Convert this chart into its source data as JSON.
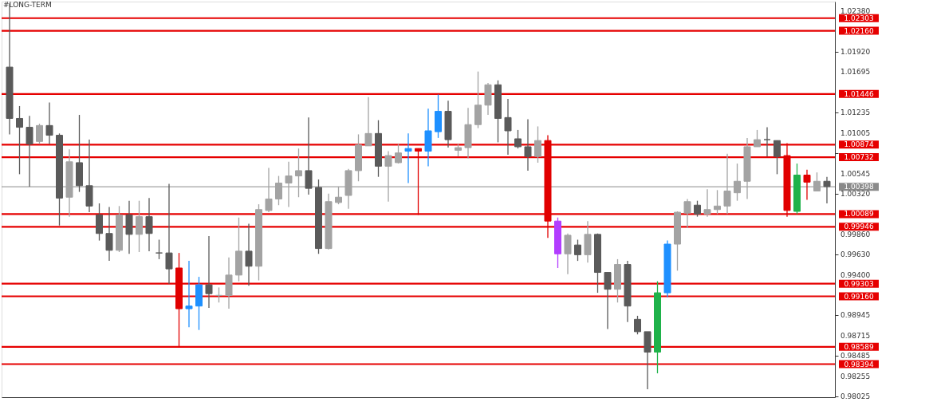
{
  "chart_data": {
    "type": "candlestick",
    "annotations": [
      "#LONG-TERM"
    ],
    "categories": [
      null,
      null,
      null,
      null,
      null,
      null,
      null,
      null,
      null,
      null,
      null,
      null,
      null,
      null,
      null,
      null,
      null,
      null,
      null,
      null,
      null,
      null,
      null,
      null,
      null,
      null,
      null,
      null,
      null,
      null,
      null,
      null,
      null,
      null,
      null,
      null,
      null,
      null,
      null,
      null,
      null,
      null,
      null,
      null,
      null,
      null,
      null,
      null,
      null,
      null,
      null,
      null,
      null,
      null,
      null,
      null,
      null,
      null,
      null,
      null,
      null,
      null,
      null,
      null,
      null,
      null,
      null,
      null,
      null,
      null,
      null,
      null,
      null,
      null,
      null,
      null,
      null,
      null,
      null,
      null,
      null,
      null,
      null
    ],
    "ohlc": [
      [
        1.0175,
        1.0247,
        1.0099,
        1.0117
      ],
      [
        1.0117,
        1.0131,
        1.0054,
        1.0107
      ],
      [
        1.0107,
        1.012,
        1.004,
        1.0088
      ],
      [
        1.0091,
        1.0111,
        1.0088,
        1.0109
      ],
      [
        1.0109,
        1.0135,
        1.0088,
        1.0098
      ],
      [
        1.0098,
        1.01,
        0.9996,
        1.0027
      ],
      [
        1.0028,
        1.0082,
        1.0006,
        1.0068
      ],
      [
        1.0067,
        1.0121,
        1.0034,
        1.0041
      ],
      [
        1.0041,
        1.0093,
        1.0011,
        1.0018
      ],
      [
        1.0008,
        1.0021,
        0.9979,
        0.9987
      ],
      [
        0.9987,
        1.0017,
        0.9956,
        0.9968
      ],
      [
        0.9968,
        1.0018,
        0.9966,
        1.0008
      ],
      [
        1.0008,
        1.0024,
        0.9964,
        0.9986
      ],
      [
        0.9986,
        1.0024,
        0.9966,
        1.0006
      ],
      [
        1.0006,
        1.0027,
        0.9967,
        0.9987
      ],
      [
        0.9965,
        0.998,
        0.9958,
        0.9965
      ],
      [
        0.9965,
        1.0043,
        0.993,
        0.9947
      ],
      [
        0.9948,
        0.9965,
        0.9859,
        0.9902
      ],
      [
        0.9902,
        0.9956,
        0.9881,
        0.9905
      ],
      [
        0.9905,
        0.9938,
        0.9878,
        0.9929
      ],
      [
        0.9929,
        0.9984,
        0.9903,
        0.9919
      ],
      [
        0.9917,
        0.9926,
        0.9909,
        0.9917
      ],
      [
        0.9917,
        0.996,
        0.9902,
        0.994
      ],
      [
        0.994,
        1.0005,
        0.9933,
        0.9967
      ],
      [
        0.9967,
        0.9998,
        0.9928,
        0.995
      ],
      [
        0.995,
        1.002,
        0.9934,
        1.0014
      ],
      [
        1.0013,
        1.0061,
        1.0011,
        1.0026
      ],
      [
        1.0026,
        1.0052,
        1.0019,
        1.0044
      ],
      [
        1.0044,
        1.0068,
        1.0017,
        1.0052
      ],
      [
        1.0052,
        1.0083,
        1.0028,
        1.0058
      ],
      [
        1.0058,
        1.0118,
        1.0031,
        1.0038
      ],
      [
        1.0039,
        1.0048,
        0.9964,
        0.997
      ],
      [
        0.997,
        1.0032,
        0.9969,
        1.0023
      ],
      [
        1.0022,
        1.004,
        1.002,
        1.0028
      ],
      [
        1.003,
        1.006,
        1.0015,
        1.0058
      ],
      [
        1.0058,
        1.0099,
        1.0046,
        1.0087
      ],
      [
        1.0086,
        1.0141,
        1.0086,
        1.01
      ],
      [
        1.01,
        1.0115,
        1.0051,
        1.0063
      ],
      [
        1.0063,
        1.008,
        1.0023,
        1.0075
      ],
      [
        1.0067,
        1.0088,
        1.0066,
        1.0078
      ],
      [
        1.008,
        1.01,
        1.0044,
        1.0083
      ],
      [
        1.0083,
        1.0083,
        1.0008,
        1.008
      ],
      [
        1.008,
        1.0128,
        1.0063,
        1.0103
      ],
      [
        1.0102,
        1.0144,
        1.0095,
        1.0125
      ],
      [
        1.0125,
        1.0137,
        1.0084,
        1.0093
      ],
      [
        1.0081,
        1.0088,
        1.0074,
        1.0084
      ],
      [
        1.0084,
        1.0129,
        1.0072,
        1.011
      ],
      [
        1.011,
        1.017,
        1.0106,
        1.0132
      ],
      [
        1.0132,
        1.0157,
        1.0121,
        1.0155
      ],
      [
        1.0155,
        1.016,
        1.009,
        1.0117
      ],
      [
        1.0118,
        1.0139,
        1.0076,
        1.0103
      ],
      [
        1.0094,
        1.0104,
        1.0083,
        1.0085
      ],
      [
        1.0085,
        1.0116,
        1.0058,
        1.0074
      ],
      [
        1.0074,
        1.0108,
        1.0067,
        1.0092
      ],
      [
        1.0092,
        1.0098,
        0.9982,
        1.0001
      ],
      [
        1.0001,
        1.0005,
        0.9948,
        0.9964
      ],
      [
        0.9964,
        0.9987,
        0.9941,
        0.9985
      ],
      [
        0.9974,
        0.998,
        0.9956,
        0.9963
      ],
      [
        0.9963,
        1.0001,
        0.9954,
        0.9986
      ],
      [
        0.9986,
        0.9987,
        0.992,
        0.9943
      ],
      [
        0.9943,
        0.9943,
        0.9879,
        0.9924
      ],
      [
        0.9924,
        0.9958,
        0.9909,
        0.9952
      ],
      [
        0.9952,
        0.9956,
        0.9887,
        0.9905
      ],
      [
        0.989,
        0.9894,
        0.9873,
        0.9876
      ],
      [
        0.9876,
        0.9876,
        0.9811,
        0.9853
      ],
      [
        0.9853,
        0.9933,
        0.9829,
        0.992
      ],
      [
        0.992,
        0.9979,
        0.9915,
        0.9975
      ],
      [
        0.9975,
        1.0012,
        0.9945,
        1.0011
      ],
      [
        1.001,
        1.0026,
        0.9993,
        1.0023
      ],
      [
        1.0019,
        1.0024,
        1.0006,
        1.0009
      ],
      [
        1.0009,
        1.0037,
        1.0006,
        1.0014
      ],
      [
        1.0014,
        1.0036,
        1.0009,
        1.0018
      ],
      [
        1.0018,
        1.0077,
        1.0009,
        1.0035
      ],
      [
        1.0033,
        1.0066,
        1.0024,
        1.0046
      ],
      [
        1.0046,
        1.0095,
        1.0026,
        1.0085
      ],
      [
        1.0085,
        1.0104,
        1.0085,
        1.0093
      ],
      [
        1.0093,
        1.0107,
        1.0074,
        1.0093
      ],
      [
        1.0092,
        1.0092,
        1.0054,
        1.0074
      ],
      [
        1.0075,
        1.0089,
        1.0006,
        1.0013
      ],
      [
        1.0012,
        1.0066,
        1.0009,
        1.0053
      ],
      [
        1.0053,
        1.0059,
        1.0025,
        1.0045
      ],
      [
        1.0035,
        1.0056,
        1.0035,
        1.0046
      ],
      [
        1.0046,
        1.0051,
        1.0021,
        1.004
      ]
    ],
    "colors": [
      "#5a5a5a",
      "#5a5a5a",
      "#5a5a5a",
      "#a3a3a3",
      "#5a5a5a",
      "#5a5a5a",
      "#a3a3a3",
      "#5a5a5a",
      "#5a5a5a",
      "#5a5a5a",
      "#5a5a5a",
      "#a3a3a3",
      "#5a5a5a",
      "#a3a3a3",
      "#5a5a5a",
      "#5a5a5a",
      "#5a5a5a",
      "#e10000",
      "#1e90ff",
      "#1e90ff",
      "#5a5a5a",
      "#a3a3a3",
      "#a3a3a3",
      "#a3a3a3",
      "#5a5a5a",
      "#a3a3a3",
      "#a3a3a3",
      "#a3a3a3",
      "#a3a3a3",
      "#a3a3a3",
      "#5a5a5a",
      "#5a5a5a",
      "#a3a3a3",
      "#a3a3a3",
      "#a3a3a3",
      "#a3a3a3",
      "#a3a3a3",
      "#5a5a5a",
      "#a3a3a3",
      "#a3a3a3",
      "#1e90ff",
      "#e10000",
      "#1e90ff",
      "#1e90ff",
      "#5a5a5a",
      "#a3a3a3",
      "#a3a3a3",
      "#a3a3a3",
      "#a3a3a3",
      "#5a5a5a",
      "#5a5a5a",
      "#5a5a5a",
      "#5a5a5a",
      "#a3a3a3",
      "#e10000",
      "#b23cff",
      "#a3a3a3",
      "#5a5a5a",
      "#a3a3a3",
      "#5a5a5a",
      "#5a5a5a",
      "#a3a3a3",
      "#5a5a5a",
      "#5a5a5a",
      "#5a5a5a",
      "#1fb24a",
      "#1e90ff",
      "#a3a3a3",
      "#a3a3a3",
      "#5a5a5a",
      "#a3a3a3",
      "#a3a3a3",
      "#a3a3a3",
      "#a3a3a3",
      "#a3a3a3",
      "#a3a3a3",
      "#5a5a5a",
      "#5a5a5a",
      "#e10000",
      "#1fb24a",
      "#e10000",
      "#a3a3a3",
      "#5a5a5a"
    ],
    "ylim": [
      0.9802,
      1.0249
    ],
    "yticks": [
      {
        "value": 1.0238,
        "label": "1.02380"
      },
      {
        "value": 1.0192,
        "label": "1.01920"
      },
      {
        "value": 1.01695,
        "label": "1.01695"
      },
      {
        "value": 1.01235,
        "label": "1.01235"
      },
      {
        "value": 1.01005,
        "label": "1.01005"
      },
      {
        "value": 1.00775,
        "label": null
      },
      {
        "value": 1.00545,
        "label": "1.00545"
      },
      {
        "value": 1.0032,
        "label": "1.00320"
      },
      {
        "value": 0.9986,
        "label": "0.99860"
      },
      {
        "value": 0.9963,
        "label": "0.99630"
      },
      {
        "value": 0.994,
        "label": "0.99400"
      },
      {
        "value": 0.98945,
        "label": "0.98945"
      },
      {
        "value": 0.98715,
        "label": "0.98715"
      },
      {
        "value": 0.98485,
        "label": "0.98485"
      },
      {
        "value": 0.98255,
        "label": "0.98255"
      },
      {
        "value": 0.98025,
        "label": "0.98025"
      }
    ],
    "tick_labels": "y",
    "ref_lines": [
      {
        "axis": "y",
        "value": 1.02303,
        "label": "1.02303",
        "color": "#e60000"
      },
      {
        "axis": "y",
        "value": 1.0216,
        "label": "1.02160",
        "color": "#e60000"
      },
      {
        "axis": "y",
        "value": 1.01446,
        "label": "1.01446",
        "color": "#e60000"
      },
      {
        "axis": "y",
        "value": 1.00874,
        "label": "1.00874",
        "color": "#e60000"
      },
      {
        "axis": "y",
        "value": 1.00732,
        "label": "1.00732",
        "color": "#e60000"
      },
      {
        "axis": "y",
        "value": 1.00398,
        "label": "1.00398",
        "color": "#8a8a8a"
      },
      {
        "axis": "y",
        "value": 1.00089,
        "label": "1.00089",
        "color": "#e60000"
      },
      {
        "axis": "y",
        "value": 0.99946,
        "label": "0.99946",
        "color": "#e60000"
      },
      {
        "axis": "y",
        "value": 0.99303,
        "label": "0.99303",
        "color": "#e60000"
      },
      {
        "axis": "y",
        "value": 0.9916,
        "label": "0.99160",
        "color": "#e60000"
      },
      {
        "axis": "y",
        "value": 0.98589,
        "label": "0.98589",
        "color": "#e60000"
      },
      {
        "axis": "y",
        "value": 0.98394,
        "label": "0.98394",
        "color": "#e60000"
      }
    ]
  }
}
